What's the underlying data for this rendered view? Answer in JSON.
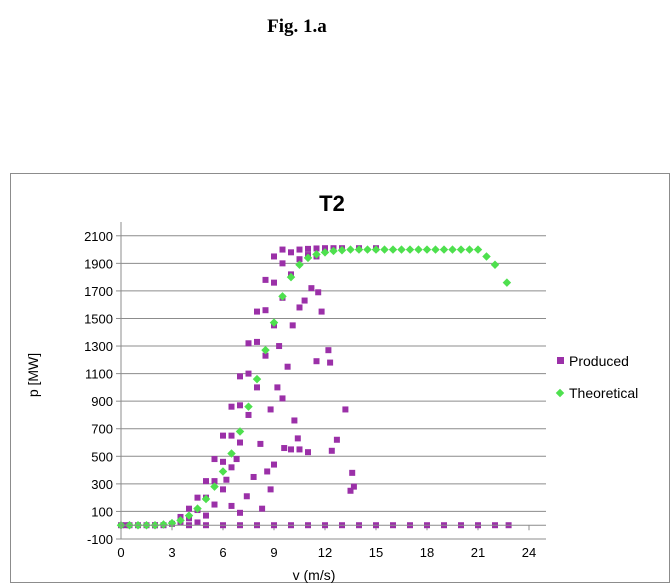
{
  "caption": "Fig. 1.a",
  "chart_data": {
    "type": "scatter",
    "title": "T2",
    "xlabel": "v (m/s)",
    "ylabel": "p [MW]",
    "xlim": [
      0,
      25
    ],
    "ylim": [
      -100,
      2200
    ],
    "x_ticks": [
      0,
      3,
      6,
      9,
      12,
      15,
      18,
      21,
      24
    ],
    "y_ticks": [
      -100,
      100,
      300,
      500,
      700,
      900,
      1100,
      1300,
      1500,
      1700,
      1900,
      2100
    ],
    "grid": true,
    "legend_position": "right",
    "series": [
      {
        "name": "Produced",
        "marker": "square",
        "color": "#9b30a8",
        "points": [
          [
            0.0,
            0
          ],
          [
            0.5,
            0
          ],
          [
            1.0,
            0
          ],
          [
            1.5,
            0
          ],
          [
            2.0,
            0
          ],
          [
            2.5,
            0
          ],
          [
            3.0,
            10
          ],
          [
            3.5,
            20
          ],
          [
            4.0,
            50
          ],
          [
            4.5,
            110
          ],
          [
            5.0,
            200
          ],
          [
            5.5,
            320
          ],
          [
            6.0,
            460
          ],
          [
            6.5,
            650
          ],
          [
            7.0,
            870
          ],
          [
            7.5,
            1100
          ],
          [
            8.0,
            1330
          ],
          [
            8.5,
            1560
          ],
          [
            9.0,
            1760
          ],
          [
            9.5,
            1900
          ],
          [
            10.0,
            1980
          ],
          [
            10.5,
            2000
          ],
          [
            11.0,
            2005
          ],
          [
            11.5,
            2008
          ],
          [
            12.0,
            2010
          ],
          [
            12.5,
            2010
          ],
          [
            13.0,
            2010
          ],
          [
            14.0,
            2010
          ],
          [
            15.0,
            2010
          ],
          [
            3.5,
            60
          ],
          [
            4.0,
            120
          ],
          [
            4.5,
            200
          ],
          [
            5.0,
            320
          ],
          [
            5.5,
            480
          ],
          [
            6.0,
            650
          ],
          [
            6.5,
            860
          ],
          [
            7.0,
            1080
          ],
          [
            7.5,
            1320
          ],
          [
            8.0,
            1550
          ],
          [
            8.5,
            1780
          ],
          [
            9.0,
            1950
          ],
          [
            9.5,
            2000
          ],
          [
            4.5,
            20
          ],
          [
            5.0,
            70
          ],
          [
            5.5,
            150
          ],
          [
            6.0,
            260
          ],
          [
            6.5,
            420
          ],
          [
            7.0,
            600
          ],
          [
            7.5,
            800
          ],
          [
            8.0,
            1000
          ],
          [
            8.5,
            1230
          ],
          [
            9.0,
            1450
          ],
          [
            9.5,
            1650
          ],
          [
            10.0,
            1820
          ],
          [
            10.5,
            1930
          ],
          [
            11.0,
            1960
          ],
          [
            11.5,
            1950
          ],
          [
            6.2,
            330
          ],
          [
            6.8,
            480
          ],
          [
            7.4,
            210
          ],
          [
            7.8,
            350
          ],
          [
            8.2,
            590
          ],
          [
            8.6,
            390
          ],
          [
            8.8,
            840
          ],
          [
            9.2,
            1000
          ],
          [
            9.5,
            920
          ],
          [
            9.3,
            1300
          ],
          [
            9.8,
            1150
          ],
          [
            10.1,
            1450
          ],
          [
            10.5,
            1580
          ],
          [
            10.8,
            1630
          ],
          [
            11.2,
            1720
          ],
          [
            11.6,
            1690
          ],
          [
            11.8,
            1550
          ],
          [
            10.2,
            760
          ],
          [
            10.4,
            630
          ],
          [
            9.6,
            560
          ],
          [
            10.0,
            550
          ],
          [
            10.5,
            550
          ],
          [
            11.0,
            530
          ],
          [
            12.2,
            1270
          ],
          [
            12.3,
            1180
          ],
          [
            12.7,
            620
          ],
          [
            12.4,
            540
          ],
          [
            13.2,
            840
          ],
          [
            13.6,
            380
          ],
          [
            13.5,
            250
          ],
          [
            13.7,
            280
          ],
          [
            11.5,
            1190
          ],
          [
            9.0,
            440
          ],
          [
            8.3,
            120
          ],
          [
            7.0,
            90
          ],
          [
            6.5,
            140
          ],
          [
            8.8,
            260
          ],
          [
            0.3,
            0
          ],
          [
            2.0,
            0
          ],
          [
            4.0,
            0
          ],
          [
            5.0,
            0
          ],
          [
            6.0,
            0
          ],
          [
            7.0,
            0
          ],
          [
            8.0,
            0
          ],
          [
            9.0,
            0
          ],
          [
            10.0,
            0
          ],
          [
            11.0,
            0
          ],
          [
            12.0,
            0
          ],
          [
            13.0,
            0
          ],
          [
            14.0,
            0
          ],
          [
            15.0,
            0
          ],
          [
            16.0,
            0
          ],
          [
            17.0,
            0
          ],
          [
            18.0,
            0
          ],
          [
            19.0,
            0
          ],
          [
            20.0,
            0
          ],
          [
            21.0,
            0
          ],
          [
            22.0,
            0
          ],
          [
            22.8,
            0
          ]
        ]
      },
      {
        "name": "Theoretical",
        "marker": "diamond",
        "color": "#4ee04e",
        "points": [
          [
            0.0,
            0
          ],
          [
            0.5,
            0
          ],
          [
            1.0,
            0
          ],
          [
            1.5,
            0
          ],
          [
            2.0,
            0
          ],
          [
            2.5,
            5
          ],
          [
            3.0,
            15
          ],
          [
            3.5,
            35
          ],
          [
            4.0,
            70
          ],
          [
            4.5,
            120
          ],
          [
            5.0,
            190
          ],
          [
            5.5,
            280
          ],
          [
            6.0,
            390
          ],
          [
            6.5,
            520
          ],
          [
            7.0,
            680
          ],
          [
            7.5,
            860
          ],
          [
            8.0,
            1060
          ],
          [
            8.5,
            1270
          ],
          [
            9.0,
            1470
          ],
          [
            9.5,
            1660
          ],
          [
            10.0,
            1800
          ],
          [
            10.5,
            1890
          ],
          [
            11.0,
            1940
          ],
          [
            11.5,
            1965
          ],
          [
            12.0,
            1980
          ],
          [
            12.5,
            1990
          ],
          [
            13.0,
            1995
          ],
          [
            13.5,
            2000
          ],
          [
            14.0,
            2000
          ],
          [
            14.5,
            2000
          ],
          [
            15.0,
            2000
          ],
          [
            15.5,
            2000
          ],
          [
            16.0,
            2000
          ],
          [
            16.5,
            2000
          ],
          [
            17.0,
            2000
          ],
          [
            17.5,
            2000
          ],
          [
            18.0,
            2000
          ],
          [
            18.5,
            2000
          ],
          [
            19.0,
            2000
          ],
          [
            19.5,
            2000
          ],
          [
            20.0,
            2000
          ],
          [
            20.5,
            2000
          ],
          [
            21.0,
            2000
          ],
          [
            21.5,
            1950
          ],
          [
            22.0,
            1890
          ],
          [
            22.7,
            1760
          ]
        ]
      }
    ]
  }
}
